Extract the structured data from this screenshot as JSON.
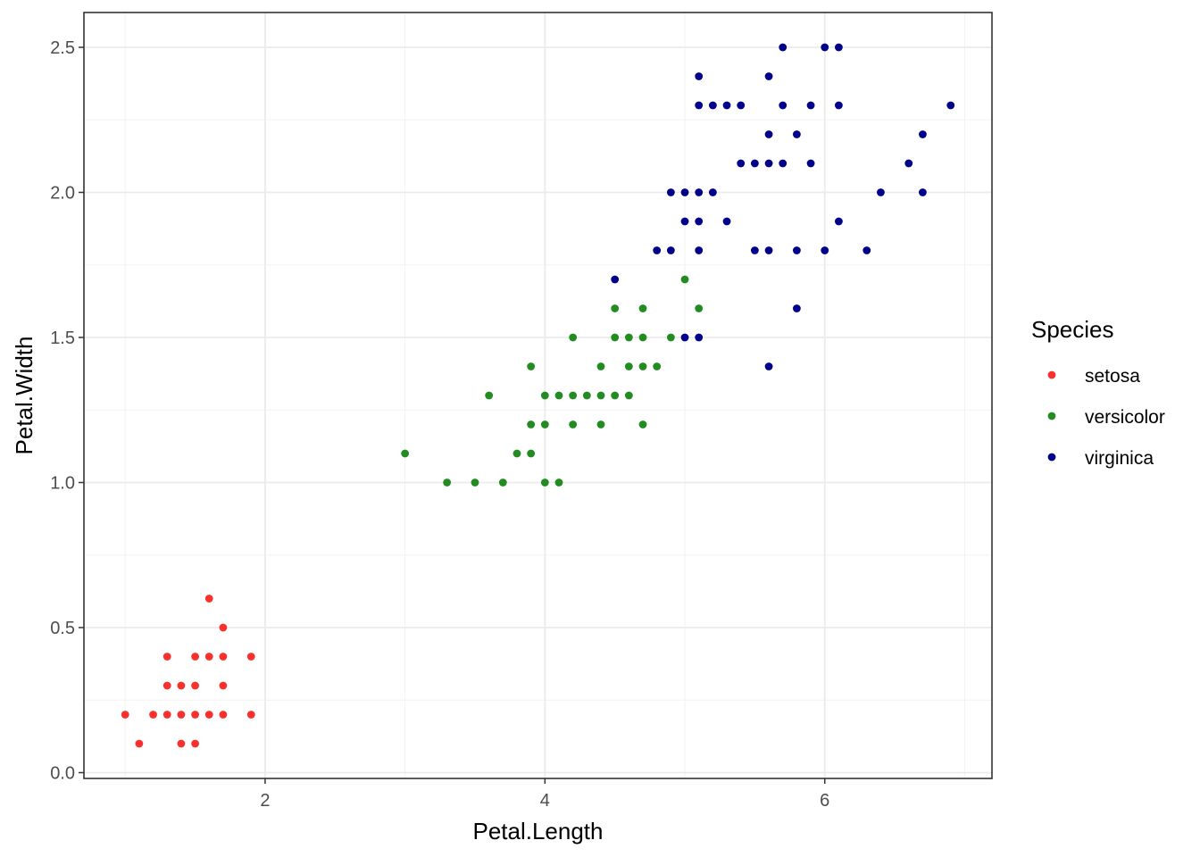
{
  "chart_data": {
    "type": "scatter",
    "xlabel": "Petal.Length",
    "ylabel": "Petal.Width",
    "xlim": [
      0.705,
      7.195
    ],
    "ylim": [
      -0.02,
      2.62
    ],
    "x_ticks": [
      2,
      4,
      6
    ],
    "x_tick_labels": [
      "2",
      "4",
      "6"
    ],
    "y_ticks": [
      0,
      0.5,
      1,
      1.5,
      2,
      2.5
    ],
    "y_tick_labels": [
      "0.0",
      "0.5",
      "1.0",
      "1.5",
      "2.0",
      "2.5"
    ],
    "grid": true,
    "legend": {
      "title": "Species",
      "placement": "right"
    },
    "series": [
      {
        "name": "setosa",
        "color": "#f8312f",
        "points": [
          [
            1.0,
            0.2
          ],
          [
            1.1,
            0.1
          ],
          [
            1.2,
            0.2
          ],
          [
            1.3,
            0.2
          ],
          [
            1.3,
            0.3
          ],
          [
            1.3,
            0.4
          ],
          [
            1.4,
            0.1
          ],
          [
            1.4,
            0.2
          ],
          [
            1.4,
            0.3
          ],
          [
            1.5,
            0.1
          ],
          [
            1.5,
            0.2
          ],
          [
            1.5,
            0.3
          ],
          [
            1.5,
            0.4
          ],
          [
            1.6,
            0.2
          ],
          [
            1.6,
            0.4
          ],
          [
            1.6,
            0.6
          ],
          [
            1.7,
            0.2
          ],
          [
            1.7,
            0.3
          ],
          [
            1.7,
            0.4
          ],
          [
            1.7,
            0.5
          ],
          [
            1.9,
            0.2
          ],
          [
            1.9,
            0.4
          ]
        ]
      },
      {
        "name": "versicolor",
        "color": "#228b22",
        "points": [
          [
            3.0,
            1.1
          ],
          [
            3.3,
            1.0
          ],
          [
            3.5,
            1.0
          ],
          [
            3.6,
            1.3
          ],
          [
            3.7,
            1.0
          ],
          [
            3.8,
            1.1
          ],
          [
            3.9,
            1.1
          ],
          [
            3.9,
            1.2
          ],
          [
            3.9,
            1.4
          ],
          [
            4.0,
            1.0
          ],
          [
            4.0,
            1.2
          ],
          [
            4.0,
            1.3
          ],
          [
            4.1,
            1.0
          ],
          [
            4.1,
            1.3
          ],
          [
            4.2,
            1.2
          ],
          [
            4.2,
            1.3
          ],
          [
            4.2,
            1.5
          ],
          [
            4.3,
            1.3
          ],
          [
            4.4,
            1.2
          ],
          [
            4.4,
            1.3
          ],
          [
            4.4,
            1.4
          ],
          [
            4.5,
            1.3
          ],
          [
            4.5,
            1.5
          ],
          [
            4.5,
            1.6
          ],
          [
            4.6,
            1.3
          ],
          [
            4.6,
            1.4
          ],
          [
            4.6,
            1.5
          ],
          [
            4.7,
            1.2
          ],
          [
            4.7,
            1.4
          ],
          [
            4.7,
            1.5
          ],
          [
            4.7,
            1.6
          ],
          [
            4.8,
            1.4
          ],
          [
            4.9,
            1.5
          ],
          [
            5.0,
            1.7
          ],
          [
            5.1,
            1.6
          ]
        ]
      },
      {
        "name": "virginica",
        "color": "#00008b",
        "points": [
          [
            4.5,
            1.7
          ],
          [
            4.8,
            1.8
          ],
          [
            4.9,
            1.8
          ],
          [
            4.9,
            2.0
          ],
          [
            5.0,
            1.5
          ],
          [
            5.0,
            1.9
          ],
          [
            5.0,
            2.0
          ],
          [
            5.1,
            1.5
          ],
          [
            5.1,
            1.8
          ],
          [
            5.1,
            1.9
          ],
          [
            5.1,
            2.0
          ],
          [
            5.1,
            2.3
          ],
          [
            5.1,
            2.4
          ],
          [
            5.2,
            2.0
          ],
          [
            5.2,
            2.3
          ],
          [
            5.3,
            1.9
          ],
          [
            5.3,
            2.3
          ],
          [
            5.4,
            2.1
          ],
          [
            5.4,
            2.3
          ],
          [
            5.5,
            1.8
          ],
          [
            5.5,
            2.1
          ],
          [
            5.6,
            1.4
          ],
          [
            5.6,
            1.8
          ],
          [
            5.6,
            2.1
          ],
          [
            5.6,
            2.2
          ],
          [
            5.6,
            2.4
          ],
          [
            5.7,
            2.1
          ],
          [
            5.7,
            2.3
          ],
          [
            5.7,
            2.5
          ],
          [
            5.8,
            1.6
          ],
          [
            5.8,
            1.8
          ],
          [
            5.8,
            2.2
          ],
          [
            5.9,
            2.1
          ],
          [
            5.9,
            2.3
          ],
          [
            6.0,
            1.8
          ],
          [
            6.0,
            2.5
          ],
          [
            6.1,
            1.9
          ],
          [
            6.1,
            2.3
          ],
          [
            6.1,
            2.5
          ],
          [
            6.3,
            1.8
          ],
          [
            6.4,
            2.0
          ],
          [
            6.6,
            2.1
          ],
          [
            6.7,
            2.0
          ],
          [
            6.7,
            2.2
          ],
          [
            6.9,
            2.3
          ]
        ]
      }
    ]
  }
}
